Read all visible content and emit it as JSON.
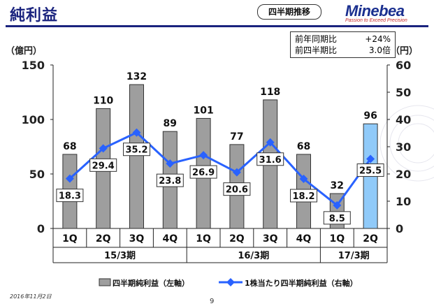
{
  "title": "純利益",
  "badge": "四半期推移",
  "logo": {
    "name": "Minebea",
    "tagline": "Passion to Exceed Precision"
  },
  "comparison": [
    {
      "label": "前年同期比",
      "value": "+24%"
    },
    {
      "label": "前四半期比",
      "value": "3.0倍"
    }
  ],
  "footer": {
    "date": "2016年11月2日",
    "page": "9"
  },
  "chart_data": {
    "type": "bar",
    "categories": [
      "1Q",
      "2Q",
      "3Q",
      "4Q",
      "1Q",
      "2Q",
      "3Q",
      "4Q",
      "1Q",
      "2Q"
    ],
    "groups": [
      {
        "label": "15/3期",
        "count": 4
      },
      {
        "label": "16/3期",
        "count": 4
      },
      {
        "label": "17/3期",
        "count": 2
      }
    ],
    "series": [
      {
        "name": "四半期純利益（左軸）",
        "type": "bar",
        "axis": "left",
        "values": [
          68,
          110,
          132,
          89,
          101,
          77,
          118,
          68,
          32,
          96
        ],
        "labels": [
          "68",
          "110",
          "132",
          "89",
          "101",
          "77",
          "118",
          "68",
          "32",
          "96"
        ],
        "color": "#9e9e9e",
        "highlight_color": "#90caf9",
        "highlight_index": 9
      },
      {
        "name": "1株当たり四半期純利益（右軸）",
        "type": "line",
        "axis": "right",
        "values": [
          18.3,
          29.4,
          35.2,
          23.8,
          26.9,
          20.6,
          31.6,
          18.2,
          8.5,
          25.5
        ],
        "labels": [
          "18.3",
          "29.4",
          "35.2",
          "23.8",
          "26.9",
          "20.6",
          "31.6",
          "18.2",
          "8.5",
          "25.5"
        ],
        "color": "#2962ff"
      }
    ],
    "y_left": {
      "unit": "（億円）",
      "range": [
        0,
        150
      ],
      "ticks": [
        0,
        50,
        100,
        150
      ]
    },
    "y_right": {
      "unit": "（円）",
      "range": [
        0,
        60
      ],
      "ticks": [
        0,
        10,
        20,
        30,
        40,
        50,
        60
      ]
    },
    "legend_position": "bottom"
  }
}
